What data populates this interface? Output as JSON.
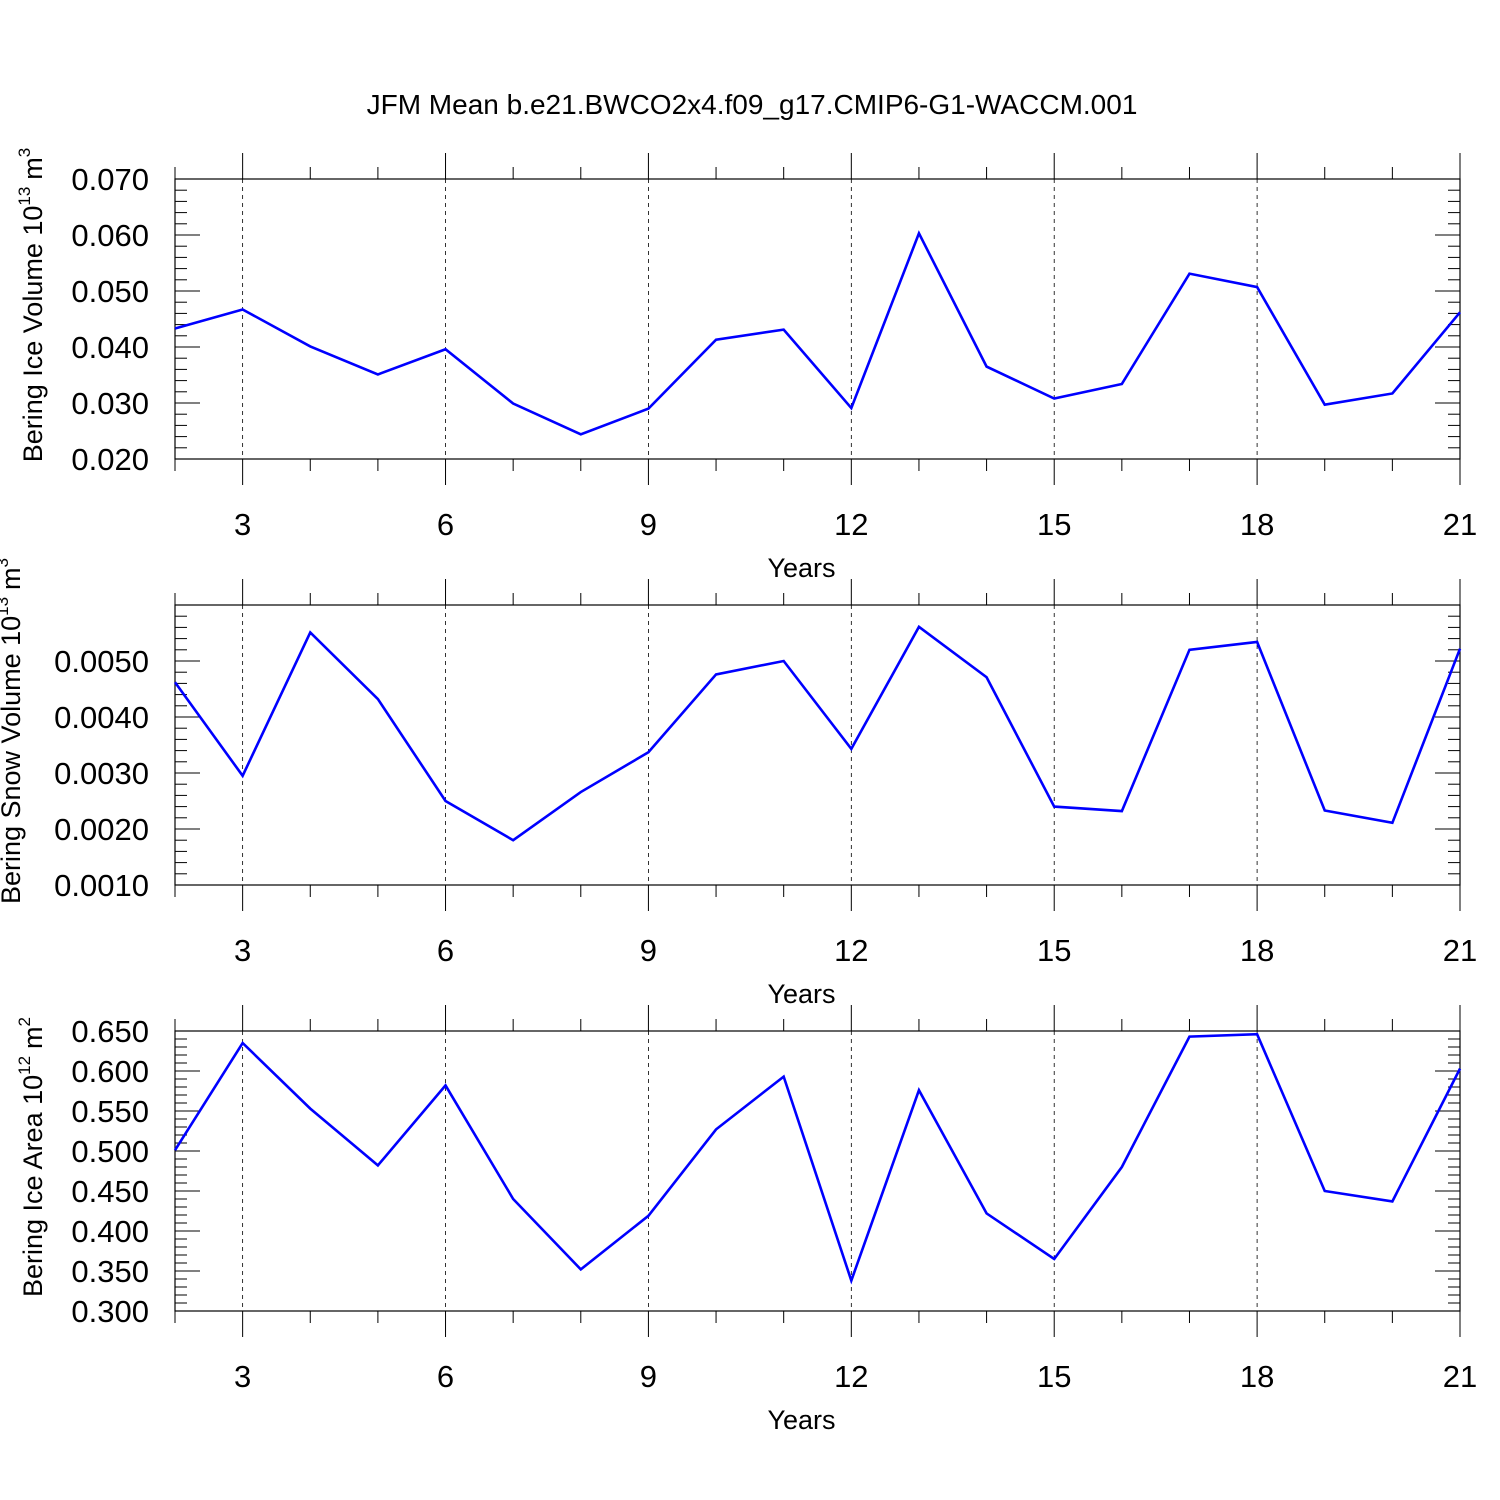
{
  "title": "JFM Mean b.e21.BWCO2x4.f09_g17.CMIP6-G1-WACCM.001",
  "line_color": "#0000ff",
  "grid_color": "#000000",
  "chart_data": [
    {
      "type": "line",
      "ylabel": {
        "text": "Bering Ice Volume 10",
        "exp": "13",
        "unit": "m",
        "unit_exp": "3"
      },
      "xlabel": "Years",
      "xlim": [
        2,
        21
      ],
      "ylim": [
        0.02,
        0.07
      ],
      "x_ticks": [
        "3",
        "6",
        "9",
        "12",
        "15",
        "18",
        "21"
      ],
      "y_ticks": [
        "0.020",
        "0.030",
        "0.040",
        "0.050",
        "0.060",
        "0.070"
      ],
      "grid": "dashed vertical at major x ticks",
      "series": [
        {
          "x": [
            2,
            3,
            4,
            5,
            6,
            7,
            8,
            9,
            10,
            11,
            12,
            13,
            14,
            15,
            16,
            17,
            18,
            19,
            20,
            21
          ],
          "values": [
            0.0433,
            0.0467,
            0.0401,
            0.0351,
            0.0396,
            0.0299,
            0.0244,
            0.029,
            0.0413,
            0.0431,
            0.0291,
            0.0603,
            0.0365,
            0.0308,
            0.0334,
            0.0531,
            0.0507,
            0.0297,
            0.0317,
            0.0462
          ]
        }
      ]
    },
    {
      "type": "line",
      "ylabel": {
        "text": "Bering Snow Volume 10",
        "exp": "13",
        "unit": "m",
        "unit_exp": "3"
      },
      "xlabel": "Years",
      "xlim": [
        2,
        21
      ],
      "ylim": [
        0.001,
        0.006
      ],
      "x_ticks": [
        "3",
        "6",
        "9",
        "12",
        "15",
        "18",
        "21"
      ],
      "y_ticks": [
        "0.0010",
        "0.0020",
        "0.0030",
        "0.0040",
        "0.0050"
      ],
      "grid": "dashed vertical at major x ticks",
      "series": [
        {
          "x": [
            2,
            3,
            4,
            5,
            6,
            7,
            8,
            9,
            10,
            11,
            12,
            13,
            14,
            15,
            16,
            17,
            18,
            19,
            20,
            21
          ],
          "values": [
            0.00462,
            0.00295,
            0.00551,
            0.00432,
            0.0025,
            0.0018,
            0.00266,
            0.00337,
            0.00476,
            0.005,
            0.00343,
            0.00561,
            0.00471,
            0.0024,
            0.00232,
            0.0052,
            0.00534,
            0.00233,
            0.00211,
            0.00522
          ]
        }
      ]
    },
    {
      "type": "line",
      "ylabel": {
        "text": "Bering Ice Area 10",
        "exp": "12",
        "unit": "m",
        "unit_exp": "2"
      },
      "xlabel": "Years",
      "xlim": [
        2,
        21
      ],
      "ylim": [
        0.3,
        0.65
      ],
      "x_ticks": [
        "3",
        "6",
        "9",
        "12",
        "15",
        "18",
        "21"
      ],
      "y_ticks": [
        "0.300",
        "0.350",
        "0.400",
        "0.450",
        "0.500",
        "0.550",
        "0.600",
        "0.650"
      ],
      "grid": "dashed vertical at major x ticks",
      "series": [
        {
          "x": [
            2,
            3,
            4,
            5,
            6,
            7,
            8,
            9,
            10,
            11,
            12,
            13,
            14,
            15,
            16,
            17,
            18,
            19,
            20,
            21
          ],
          "values": [
            0.501,
            0.635,
            0.553,
            0.482,
            0.582,
            0.44,
            0.352,
            0.419,
            0.527,
            0.593,
            0.338,
            0.576,
            0.422,
            0.365,
            0.48,
            0.643,
            0.646,
            0.45,
            0.437,
            0.603
          ]
        }
      ]
    }
  ]
}
